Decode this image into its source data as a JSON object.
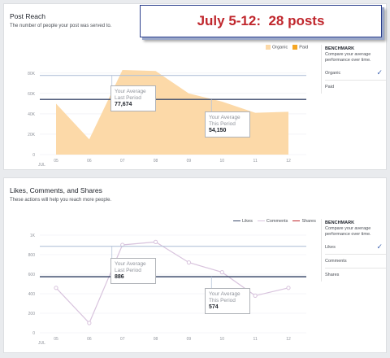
{
  "banner": {
    "text": "July 5-12:  28 posts"
  },
  "post_reach": {
    "title": "Post Reach",
    "subtitle": "The number of people your post was served to.",
    "legend": {
      "organic": "Organic",
      "paid": "Paid"
    },
    "benchmark": {
      "heading": "BENCHMARK",
      "desc": "Compare your average performance over time.",
      "options": [
        "Organic",
        "Paid"
      ],
      "selected": 0
    },
    "avg_last": {
      "label1": "Your Average",
      "label2": "Last Period",
      "value": "77,674"
    },
    "avg_this": {
      "label1": "Your Average",
      "label2": "This Period",
      "value": "54,150"
    }
  },
  "engagement": {
    "title": "Likes, Comments, and Shares",
    "subtitle": "These actions will help you reach more people.",
    "legend": {
      "likes": "Likes",
      "comments": "Comments",
      "shares": "Shares"
    },
    "benchmark": {
      "heading": "BENCHMARK",
      "desc": "Compare your average performance over time.",
      "options": [
        "Likes",
        "Comments",
        "Shares"
      ],
      "selected": 0
    },
    "avg_last": {
      "label1": "Your Average",
      "label2": "Last Period",
      "value": "886"
    },
    "avg_this": {
      "label1": "Your Average",
      "label2": "This Period",
      "value": "574"
    }
  },
  "colors": {
    "organic": "#fcd9a8",
    "paid": "#f5a623",
    "likes": "#3b4a6b",
    "comments": "#d8c3dd",
    "shares": "#c0272d",
    "accent": "#4267b2",
    "banner_text": "#c0272d"
  },
  "chart_data": [
    {
      "type": "area",
      "title": "Post Reach",
      "x": [
        "05",
        "06",
        "07",
        "08",
        "09",
        "10",
        "11",
        "12"
      ],
      "x_month_label": "JUL",
      "yticks": [
        "0",
        "20K",
        "40K",
        "60K",
        "80K"
      ],
      "ylim": [
        0,
        95000
      ],
      "series": [
        {
          "name": "Organic",
          "values": [
            50000,
            15000,
            83000,
            82000,
            60000,
            52000,
            41000,
            42000
          ]
        }
      ],
      "reference_lines": [
        {
          "label": "Your Average Last Period",
          "value": 77674
        },
        {
          "label": "Your Average This Period",
          "value": 54150
        }
      ]
    },
    {
      "type": "line",
      "title": "Likes, Comments, and Shares",
      "x": [
        "05",
        "06",
        "07",
        "08",
        "09",
        "10",
        "11",
        "12"
      ],
      "x_month_label": "JUL",
      "yticks": [
        "0",
        "200",
        "400",
        "600",
        "800",
        "1K"
      ],
      "ylim": [
        0,
        1050
      ],
      "series": [
        {
          "name": "Likes",
          "values": [
            460,
            100,
            900,
            930,
            720,
            620,
            380,
            460
          ]
        }
      ],
      "reference_lines": [
        {
          "label": "Your Average Last Period",
          "value": 886
        },
        {
          "label": "Your Average This Period",
          "value": 574
        }
      ]
    }
  ]
}
